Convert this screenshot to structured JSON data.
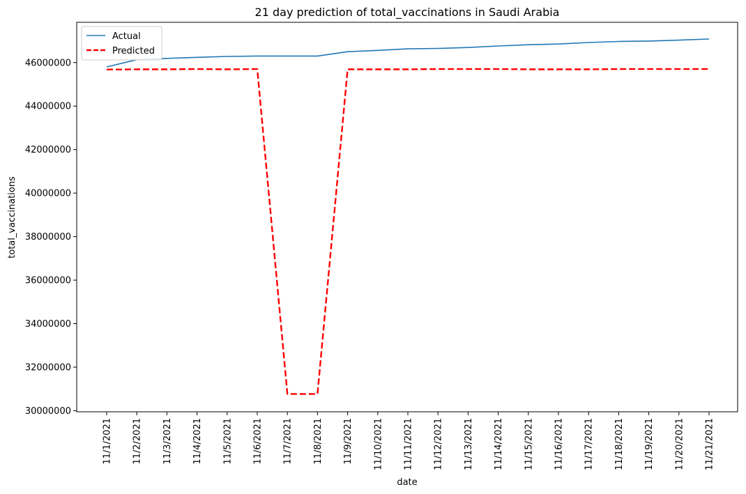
{
  "chart_data": {
    "type": "line",
    "title": "21 day prediction of total_vaccinations in Saudi Arabia",
    "xlabel": "date",
    "ylabel": "total_vaccinations",
    "categories": [
      "11/1/2021",
      "11/2/2021",
      "11/3/2021",
      "11/4/2021",
      "11/5/2021",
      "11/6/2021",
      "11/7/2021",
      "11/8/2021",
      "11/9/2021",
      "11/10/2021",
      "11/11/2021",
      "11/12/2021",
      "11/13/2021",
      "11/14/2021",
      "11/15/2021",
      "11/16/2021",
      "11/17/2021",
      "11/18/2021",
      "11/19/2021",
      "11/20/2021",
      "11/21/2021"
    ],
    "yticks": [
      30000000,
      32000000,
      34000000,
      36000000,
      38000000,
      40000000,
      42000000,
      44000000,
      46000000
    ],
    "ytick_labels": [
      "30000000",
      "32000000",
      "34000000",
      "36000000",
      "38000000",
      "40000000",
      "42000000",
      "44000000",
      "46000000"
    ],
    "ylim": [
      29950000,
      47850000
    ],
    "legend_position": "top-left",
    "grid": false,
    "series": [
      {
        "name": "Actual",
        "color": "#1f77b4",
        "style": "solid",
        "values": [
          45800000,
          46130000,
          46190000,
          46240000,
          46280000,
          46300000,
          46300000,
          46300000,
          46500000,
          46560000,
          46630000,
          46650000,
          46690000,
          46760000,
          46820000,
          46850000,
          46920000,
          46970000,
          46990000,
          47030000,
          47080000
        ]
      },
      {
        "name": "Predicted",
        "color": "#ff0000",
        "style": "dashed",
        "values": [
          45680000,
          45690000,
          45690000,
          45700000,
          45690000,
          45700000,
          30770000,
          30770000,
          45690000,
          45690000,
          45690000,
          45700000,
          45700000,
          45700000,
          45690000,
          45690000,
          45690000,
          45700000,
          45700000,
          45700000,
          45700000
        ]
      }
    ]
  }
}
